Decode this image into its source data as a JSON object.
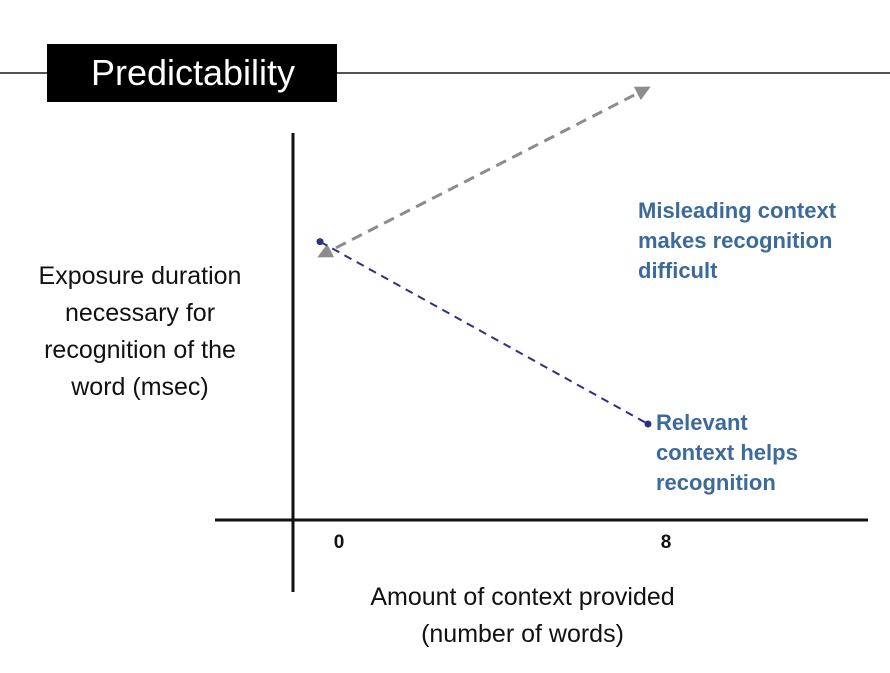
{
  "chart_data": {
    "type": "line",
    "title": "Predictability",
    "xlabel": "Amount of context provided\n(number of words)",
    "ylabel": "Exposure duration\nnecessary for\nrecognition of the\nword (msec)",
    "x": [
      0,
      8
    ],
    "xticks": [
      "0",
      "8"
    ],
    "y_values_shown": false,
    "series": [
      {
        "values": [
          0.55,
          0.9
        ],
        "color": "#8c8c8c",
        "line_style": "dashed",
        "marker": "arrow",
        "annotation": "Misleading context\nmakes recognition\ndifficult",
        "annotation_color": "#3c6a9a"
      },
      {
        "values": [
          0.58,
          0.2
        ],
        "color": "#2f2f86",
        "line_style": "dashed",
        "marker": "dot",
        "annotation": "Relevant\ncontext helps\nrecognition",
        "annotation_color": "#3c6a9a"
      }
    ],
    "grid": false
  }
}
